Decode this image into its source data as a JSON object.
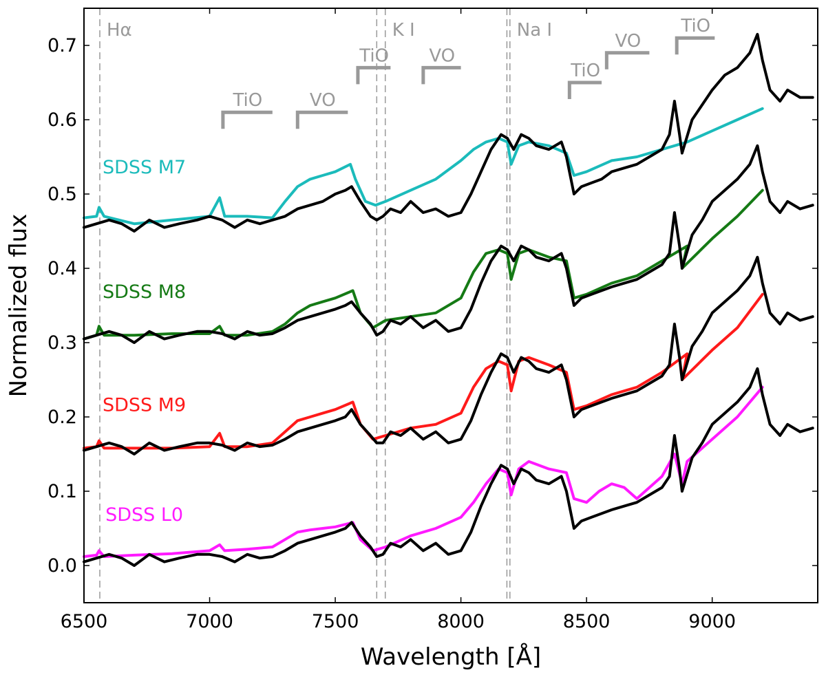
{
  "chart_data": {
    "type": "line",
    "title": "",
    "xlabel": "Wavelength [Å]",
    "ylabel": "Normalized flux",
    "xlim": [
      6500,
      9420
    ],
    "ylim": [
      -0.05,
      0.75
    ],
    "xticks": [
      6500,
      7000,
      7500,
      8000,
      8500,
      9000
    ],
    "xtick_labels": [
      "6500",
      "7000",
      "7500",
      "8000",
      "8500",
      "9000"
    ],
    "yticks": [
      0.0,
      0.1,
      0.2,
      0.3,
      0.4,
      0.5,
      0.6,
      0.7
    ],
    "ytick_labels": [
      "0.0",
      "0.1",
      "0.2",
      "0.3",
      "0.4",
      "0.5",
      "0.6",
      "0.7"
    ],
    "grid": false,
    "vertical_lines": [
      {
        "x": 6563,
        "label": "Hα",
        "color": "#999999",
        "dashed": true
      },
      {
        "x": 7665,
        "label": "",
        "color": "#999999",
        "dashed": true
      },
      {
        "x": 7699,
        "label": "K I",
        "color": "#999999",
        "dashed": true
      },
      {
        "x": 8183,
        "label": "",
        "color": "#999999",
        "dashed": true
      },
      {
        "x": 8195,
        "label": "Na I",
        "color": "#999999",
        "dashed": true
      }
    ],
    "band_markers": [
      {
        "label": "TiO",
        "x_start": 7053,
        "x_end": 7250,
        "y": 0.61
      },
      {
        "label": "VO",
        "x_start": 7350,
        "x_end": 7550,
        "y": 0.61
      },
      {
        "label": "TiO",
        "x_start": 7590,
        "x_end": 7720,
        "y": 0.67
      },
      {
        "label": "VO",
        "x_start": 7850,
        "x_end": 8000,
        "y": 0.67
      },
      {
        "label": "TiO",
        "x_start": 8432,
        "x_end": 8560,
        "y": 0.65
      },
      {
        "label": "VO",
        "x_start": 8580,
        "x_end": 8750,
        "y": 0.69
      },
      {
        "label": "TiO",
        "x_start": 8859,
        "x_end": 9010,
        "y": 0.71
      }
    ],
    "series": [
      {
        "name": "SDSS M7",
        "color": "#1bbbbb",
        "x": [
          6500,
          6550,
          6560,
          6580,
          6700,
          6850,
          7000,
          7040,
          7060,
          7150,
          7250,
          7300,
          7350,
          7400,
          7450,
          7500,
          7560,
          7580,
          7620,
          7660,
          7700,
          7800,
          7900,
          8000,
          8050,
          8100,
          8150,
          8185,
          8200,
          8230,
          8270,
          8350,
          8420,
          8450,
          8500,
          8600,
          8700,
          8800,
          8900,
          9000,
          9100,
          9200
        ],
        "y": [
          0.468,
          0.47,
          0.482,
          0.47,
          0.46,
          0.465,
          0.47,
          0.495,
          0.47,
          0.47,
          0.468,
          0.49,
          0.51,
          0.52,
          0.525,
          0.53,
          0.54,
          0.52,
          0.49,
          0.485,
          0.49,
          0.505,
          0.52,
          0.545,
          0.56,
          0.57,
          0.575,
          0.57,
          0.54,
          0.565,
          0.57,
          0.565,
          0.555,
          0.525,
          0.53,
          0.545,
          0.55,
          0.56,
          0.57,
          0.585,
          0.6,
          0.615
        ]
      },
      {
        "name": "SDSS M8",
        "color": "#157a15",
        "x": [
          6500,
          6550,
          6560,
          6580,
          6700,
          6850,
          7000,
          7040,
          7060,
          7150,
          7250,
          7300,
          7350,
          7400,
          7450,
          7500,
          7570,
          7600,
          7650,
          7700,
          7800,
          7900,
          8000,
          8050,
          8100,
          8150,
          8185,
          8200,
          8230,
          8270,
          8350,
          8420,
          8450,
          8500,
          8600,
          8700,
          8800,
          8900,
          8880,
          9000,
          9100,
          9200
        ],
        "y": [
          0.305,
          0.31,
          0.322,
          0.31,
          0.31,
          0.312,
          0.312,
          0.322,
          0.31,
          0.31,
          0.315,
          0.325,
          0.34,
          0.35,
          0.355,
          0.36,
          0.37,
          0.34,
          0.32,
          0.33,
          0.335,
          0.34,
          0.36,
          0.395,
          0.42,
          0.425,
          0.42,
          0.385,
          0.42,
          0.425,
          0.415,
          0.41,
          0.36,
          0.365,
          0.38,
          0.39,
          0.41,
          0.43,
          0.4,
          0.44,
          0.47,
          0.505
        ]
      },
      {
        "name": "SDSS M9",
        "color": "#ff1a1a",
        "x": [
          6500,
          6550,
          6560,
          6580,
          6700,
          6850,
          7000,
          7040,
          7060,
          7150,
          7250,
          7300,
          7350,
          7400,
          7450,
          7500,
          7570,
          7600,
          7650,
          7700,
          7800,
          7900,
          8000,
          8050,
          8100,
          8150,
          8185,
          8200,
          8230,
          8270,
          8350,
          8420,
          8450,
          8500,
          8600,
          8700,
          8800,
          8900,
          8880,
          9000,
          9100,
          9200
        ],
        "y": [
          0.158,
          0.16,
          0.168,
          0.158,
          0.158,
          0.158,
          0.16,
          0.178,
          0.16,
          0.16,
          0.165,
          0.18,
          0.195,
          0.2,
          0.205,
          0.21,
          0.22,
          0.19,
          0.17,
          0.175,
          0.185,
          0.19,
          0.205,
          0.24,
          0.265,
          0.275,
          0.27,
          0.235,
          0.275,
          0.28,
          0.27,
          0.26,
          0.21,
          0.215,
          0.23,
          0.24,
          0.26,
          0.285,
          0.25,
          0.29,
          0.32,
          0.365
        ]
      },
      {
        "name": "SDSS L0",
        "color": "#ff1aff",
        "x": [
          6500,
          6550,
          6560,
          6580,
          6700,
          6850,
          7000,
          7040,
          7060,
          7150,
          7250,
          7300,
          7350,
          7400,
          7450,
          7500,
          7570,
          7600,
          7650,
          7700,
          7800,
          7900,
          8000,
          8050,
          8100,
          8150,
          8185,
          8200,
          8230,
          8270,
          8350,
          8420,
          8450,
          8500,
          8550,
          8600,
          8650,
          8700,
          8750,
          8800,
          8850,
          8880,
          8900,
          9000,
          9100,
          9200
        ],
        "y": [
          0.012,
          0.014,
          0.02,
          0.012,
          0.014,
          0.016,
          0.02,
          0.028,
          0.02,
          0.022,
          0.025,
          0.035,
          0.045,
          0.048,
          0.05,
          0.052,
          0.058,
          0.035,
          0.02,
          0.025,
          0.04,
          0.05,
          0.065,
          0.085,
          0.11,
          0.13,
          0.125,
          0.095,
          0.13,
          0.14,
          0.13,
          0.125,
          0.09,
          0.085,
          0.1,
          0.11,
          0.105,
          0.09,
          0.105,
          0.12,
          0.15,
          0.11,
          0.14,
          0.17,
          0.2,
          0.24
        ]
      },
      {
        "name": "",
        "color": "#000000",
        "x": [
          6500,
          6550,
          6600,
          6650,
          6700,
          6760,
          6820,
          6880,
          6950,
          7000,
          7050,
          7100,
          7150,
          7200,
          7250,
          7300,
          7350,
          7400,
          7450,
          7500,
          7540,
          7565,
          7600,
          7640,
          7665,
          7690,
          7720,
          7760,
          7800,
          7850,
          7900,
          7950,
          8000,
          8040,
          8080,
          8120,
          8160,
          8185,
          8210,
          8240,
          8270,
          8300,
          8350,
          8400,
          8420,
          8450,
          8480,
          8520,
          8560,
          8600,
          8650,
          8700,
          8750,
          8800,
          8830,
          8850,
          8870,
          8880,
          8920,
          8960,
          9000,
          9050,
          9100,
          9150,
          9180,
          9200,
          9230,
          9270,
          9300,
          9350,
          9400
        ],
        "y": [
          0.455,
          0.46,
          0.465,
          0.46,
          0.45,
          0.465,
          0.455,
          0.46,
          0.465,
          0.47,
          0.465,
          0.455,
          0.465,
          0.46,
          0.465,
          0.47,
          0.48,
          0.485,
          0.49,
          0.5,
          0.505,
          0.51,
          0.49,
          0.47,
          0.465,
          0.47,
          0.48,
          0.475,
          0.49,
          0.475,
          0.48,
          0.47,
          0.475,
          0.5,
          0.53,
          0.56,
          0.58,
          0.575,
          0.56,
          0.58,
          0.575,
          0.565,
          0.56,
          0.57,
          0.55,
          0.5,
          0.51,
          0.515,
          0.52,
          0.53,
          0.535,
          0.54,
          0.55,
          0.56,
          0.58,
          0.625,
          0.58,
          0.555,
          0.6,
          0.62,
          0.64,
          0.66,
          0.67,
          0.69,
          0.715,
          0.68,
          0.64,
          0.625,
          0.64,
          0.63,
          0.63
        ]
      },
      {
        "name": "",
        "color": "#000000",
        "x": [
          6500,
          6550,
          6600,
          6650,
          6700,
          6760,
          6820,
          6880,
          6950,
          7000,
          7050,
          7100,
          7150,
          7200,
          7250,
          7300,
          7350,
          7400,
          7450,
          7500,
          7540,
          7565,
          7600,
          7640,
          7665,
          7690,
          7720,
          7760,
          7800,
          7850,
          7900,
          7950,
          8000,
          8040,
          8080,
          8120,
          8160,
          8185,
          8210,
          8240,
          8270,
          8300,
          8350,
          8400,
          8420,
          8450,
          8480,
          8520,
          8560,
          8600,
          8650,
          8700,
          8750,
          8800,
          8830,
          8850,
          8870,
          8880,
          8920,
          8960,
          9000,
          9050,
          9100,
          9150,
          9180,
          9200,
          9230,
          9270,
          9300,
          9350,
          9400
        ],
        "y": [
          0.305,
          0.31,
          0.315,
          0.31,
          0.3,
          0.315,
          0.305,
          0.31,
          0.315,
          0.315,
          0.312,
          0.305,
          0.315,
          0.31,
          0.312,
          0.32,
          0.33,
          0.335,
          0.34,
          0.345,
          0.35,
          0.355,
          0.34,
          0.325,
          0.31,
          0.315,
          0.33,
          0.325,
          0.335,
          0.32,
          0.33,
          0.315,
          0.32,
          0.345,
          0.38,
          0.41,
          0.43,
          0.425,
          0.41,
          0.43,
          0.425,
          0.415,
          0.41,
          0.42,
          0.4,
          0.35,
          0.36,
          0.365,
          0.37,
          0.375,
          0.38,
          0.385,
          0.395,
          0.405,
          0.42,
          0.475,
          0.43,
          0.4,
          0.445,
          0.465,
          0.49,
          0.505,
          0.52,
          0.54,
          0.565,
          0.53,
          0.49,
          0.475,
          0.49,
          0.48,
          0.485
        ]
      },
      {
        "name": "",
        "color": "#000000",
        "x": [
          6500,
          6550,
          6600,
          6650,
          6700,
          6760,
          6820,
          6880,
          6950,
          7000,
          7050,
          7100,
          7150,
          7200,
          7250,
          7300,
          7350,
          7400,
          7450,
          7500,
          7540,
          7565,
          7600,
          7640,
          7665,
          7690,
          7720,
          7760,
          7800,
          7850,
          7900,
          7950,
          8000,
          8040,
          8080,
          8120,
          8160,
          8185,
          8210,
          8240,
          8270,
          8300,
          8350,
          8400,
          8420,
          8450,
          8480,
          8520,
          8560,
          8600,
          8650,
          8700,
          8750,
          8800,
          8830,
          8850,
          8870,
          8880,
          8920,
          8960,
          9000,
          9050,
          9100,
          9150,
          9180,
          9200,
          9230,
          9270,
          9300,
          9350,
          9400
        ],
        "y": [
          0.155,
          0.16,
          0.165,
          0.16,
          0.15,
          0.165,
          0.155,
          0.16,
          0.165,
          0.165,
          0.162,
          0.155,
          0.165,
          0.16,
          0.162,
          0.17,
          0.18,
          0.185,
          0.19,
          0.195,
          0.2,
          0.21,
          0.19,
          0.175,
          0.165,
          0.165,
          0.18,
          0.175,
          0.185,
          0.17,
          0.18,
          0.165,
          0.17,
          0.195,
          0.23,
          0.26,
          0.285,
          0.28,
          0.26,
          0.28,
          0.275,
          0.265,
          0.26,
          0.27,
          0.25,
          0.2,
          0.21,
          0.215,
          0.22,
          0.225,
          0.23,
          0.235,
          0.245,
          0.255,
          0.27,
          0.325,
          0.28,
          0.25,
          0.295,
          0.315,
          0.34,
          0.355,
          0.37,
          0.39,
          0.415,
          0.38,
          0.34,
          0.325,
          0.34,
          0.33,
          0.335
        ]
      },
      {
        "name": "",
        "color": "#000000",
        "x": [
          6500,
          6550,
          6600,
          6650,
          6700,
          6760,
          6820,
          6880,
          6950,
          7000,
          7050,
          7100,
          7150,
          7200,
          7250,
          7300,
          7350,
          7400,
          7450,
          7500,
          7540,
          7565,
          7600,
          7640,
          7665,
          7690,
          7720,
          7760,
          7800,
          7850,
          7900,
          7950,
          8000,
          8040,
          8080,
          8120,
          8160,
          8185,
          8210,
          8240,
          8270,
          8300,
          8350,
          8400,
          8420,
          8450,
          8480,
          8520,
          8560,
          8600,
          8650,
          8700,
          8750,
          8800,
          8830,
          8850,
          8870,
          8880,
          8920,
          8960,
          9000,
          9050,
          9100,
          9150,
          9180,
          9200,
          9230,
          9270,
          9300,
          9350,
          9400
        ],
        "y": [
          0.005,
          0.01,
          0.015,
          0.01,
          0.0,
          0.015,
          0.005,
          0.01,
          0.015,
          0.015,
          0.012,
          0.005,
          0.015,
          0.01,
          0.012,
          0.02,
          0.03,
          0.035,
          0.04,
          0.045,
          0.05,
          0.058,
          0.04,
          0.025,
          0.012,
          0.015,
          0.03,
          0.025,
          0.035,
          0.02,
          0.03,
          0.015,
          0.02,
          0.045,
          0.08,
          0.11,
          0.135,
          0.13,
          0.11,
          0.13,
          0.125,
          0.115,
          0.11,
          0.12,
          0.1,
          0.05,
          0.06,
          0.065,
          0.07,
          0.075,
          0.08,
          0.085,
          0.095,
          0.105,
          0.12,
          0.175,
          0.13,
          0.1,
          0.145,
          0.165,
          0.19,
          0.205,
          0.22,
          0.24,
          0.265,
          0.23,
          0.19,
          0.175,
          0.19,
          0.18,
          0.185
        ]
      }
    ],
    "series_labels": [
      {
        "text": "SDSS M7",
        "color": "#1bbbbb",
        "x": 6740,
        "y": 0.528
      },
      {
        "text": "SDSS M8",
        "color": "#157a15",
        "x": 6740,
        "y": 0.36
      },
      {
        "text": "SDSS M9",
        "color": "#ff1a1a",
        "x": 6740,
        "y": 0.208
      },
      {
        "text": "SDSS L0",
        "color": "#ff1aff",
        "x": 6740,
        "y": 0.06
      }
    ]
  }
}
